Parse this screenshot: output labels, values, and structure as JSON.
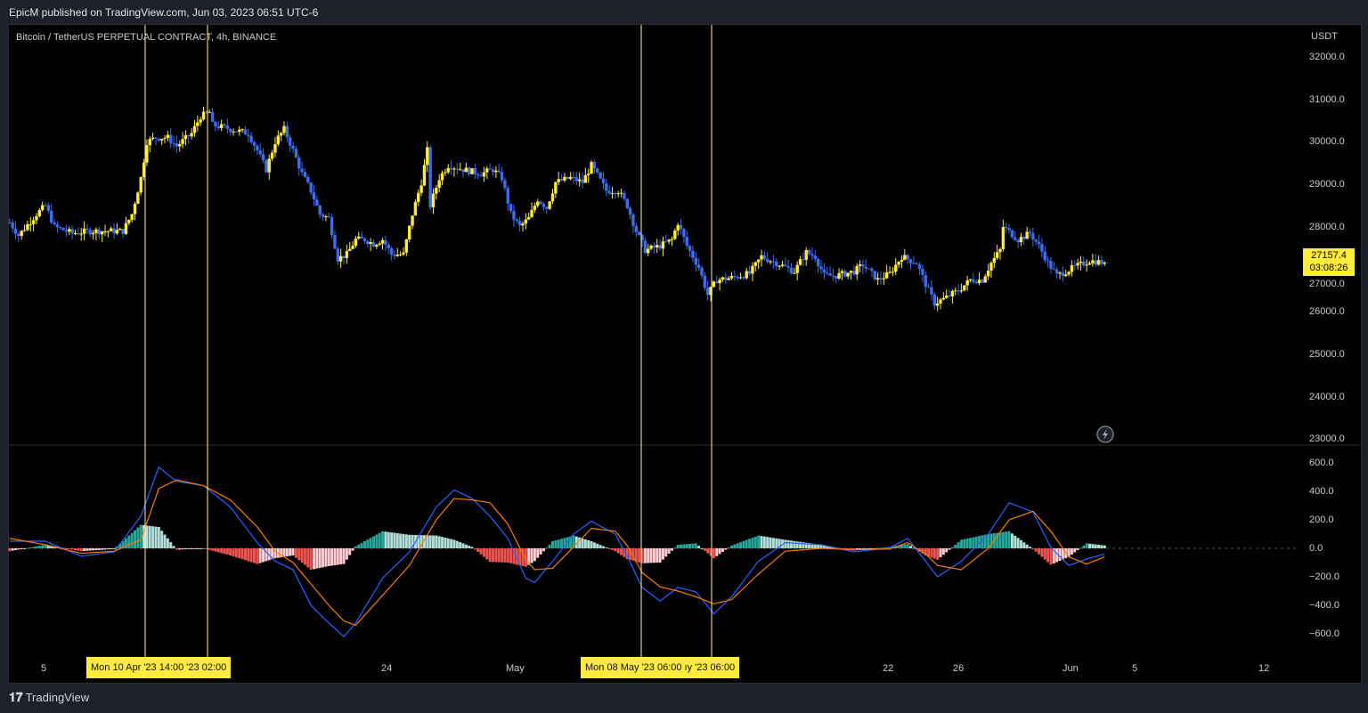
{
  "header": {
    "title": "EpicM published on TradingView.com, Jun 03, 2023 06:51 UTC-6"
  },
  "symbol": {
    "title": "Bitcoin / TetherUS PERPETUAL CONTRACT, 4h, BINANCE",
    "currency": "USDT"
  },
  "price_axis": [
    "32000.0",
    "31000.0",
    "30000.0",
    "29000.0",
    "28000.0",
    "27000.0",
    "26000.0",
    "25000.0",
    "24000.0",
    "23000.0"
  ],
  "macd_axis": [
    "600.0",
    "400.0",
    "200.0",
    "0.0",
    "−200.0",
    "−400.0",
    "−600.0"
  ],
  "last_price": {
    "value": "27157.4",
    "countdown": "03:08:26"
  },
  "time_axis": [
    "5",
    "24",
    "May",
    "22",
    "26",
    "Jun",
    "5",
    "12"
  ],
  "crosshair_labels": [
    "Mon 10 Apr '23   14:00   '23   02:00",
    "Mon 08 May '23   06:00   ıy '23   06:00"
  ],
  "footer": {
    "brand": "TradingView"
  },
  "colors": {
    "up": "#ffeb3b",
    "down": "#3d6cf0",
    "macd": "#2962ff",
    "signal": "#f57c00",
    "hist_pos": "#26a69a",
    "hist_neg": "#ef5350",
    "crosshair": "#fff59d"
  },
  "chart_data": [
    {
      "type": "candlestick",
      "title": "Bitcoin / TetherUS PERPETUAL CONTRACT, 4h, BINANCE",
      "ylabel": "USDT",
      "ylim": [
        23000,
        32000
      ],
      "close_path": [
        [
          "Apr 3 00:00",
          28100
        ],
        [
          "Apr 3 12:00",
          27800
        ],
        [
          "Apr 4 12:00",
          28300
        ],
        [
          "Apr 5 00:00",
          28500
        ],
        [
          "Apr 5 12:00",
          28000
        ],
        [
          "Apr 6 12:00",
          27850
        ],
        [
          "Apr 7 12:00",
          27900
        ],
        [
          "Apr 8 08:00",
          27900
        ],
        [
          "Apr 9 08:00",
          27900
        ],
        [
          "Apr 9 20:00",
          28300
        ],
        [
          "Apr 10 08:00",
          29150
        ],
        [
          "Apr 10 16:00",
          30000
        ],
        [
          "Apr 11 04:00",
          30100
        ],
        [
          "Apr 11 20:00",
          30100
        ],
        [
          "Apr 12 08:00",
          29900
        ],
        [
          "Apr 13 04:00",
          30200
        ],
        [
          "Apr 13 16:00",
          30600
        ],
        [
          "Apr 14 04:00",
          30700
        ],
        [
          "Apr 14 08:00",
          30400
        ],
        [
          "Apr 15 08:00",
          30300
        ],
        [
          "Apr 16 08:00",
          30200
        ],
        [
          "Apr 16 20:00",
          29800
        ],
        [
          "Apr 17 08:00",
          29350
        ],
        [
          "Apr 17 20:00",
          30000
        ],
        [
          "Apr 18 08:00",
          30300
        ],
        [
          "Apr 18 20:00",
          29800
        ],
        [
          "Apr 19 08:00",
          29250
        ],
        [
          "Apr 19 20:00",
          28850
        ],
        [
          "Apr 20 08:00",
          28300
        ],
        [
          "Apr 20 20:00",
          28200
        ],
        [
          "Apr 21 08:00",
          27250
        ],
        [
          "Apr 21 20:00",
          27350
        ],
        [
          "Apr 22 08:00",
          27700
        ],
        [
          "Apr 22 20:00",
          27700
        ],
        [
          "Apr 23 08:00",
          27600
        ],
        [
          "Apr 23 20:00",
          27700
        ],
        [
          "Apr 24 08:00",
          27350
        ],
        [
          "Apr 25 00:00",
          27350
        ],
        [
          "Apr 25 12:00",
          28300
        ],
        [
          "Apr 26 00:00",
          29050
        ],
        [
          "Apr 26 08:00",
          29800
        ],
        [
          "Apr 26 12:00",
          28500
        ],
        [
          "Apr 27 00:00",
          29150
        ],
        [
          "Apr 27 12:00",
          29450
        ],
        [
          "Apr 28 08:00",
          29350
        ],
        [
          "Apr 29 08:00",
          29250
        ],
        [
          "Apr 30 00:00",
          29350
        ],
        [
          "Apr 30 12:00",
          29150
        ],
        [
          "May 1 00:00",
          28300
        ],
        [
          "May 1 12:00",
          28000
        ],
        [
          "May 2 00:00",
          28200
        ],
        [
          "May 2 12:00",
          28650
        ],
        [
          "May 3 00:00",
          28450
        ],
        [
          "May 3 12:00",
          29050
        ],
        [
          "May 4 08:00",
          29150
        ],
        [
          "May 5 00:00",
          29050
        ],
        [
          "May 5 12:00",
          29450
        ],
        [
          "May 6 08:00",
          28850
        ],
        [
          "May 7 00:00",
          28850
        ],
        [
          "May 7 12:00",
          28500
        ],
        [
          "May 8 00:00",
          27900
        ],
        [
          "May 8 12:00",
          27450
        ],
        [
          "May 9 08:00",
          27550
        ],
        [
          "May 10 00:00",
          27700
        ],
        [
          "May 10 08:00",
          28100
        ],
        [
          "May 10 20:00",
          27550
        ],
        [
          "May 11 12:00",
          27050
        ],
        [
          "May 12 00:00",
          26400
        ],
        [
          "May 12 12:00",
          26750
        ],
        [
          "May 13 08:00",
          26800
        ],
        [
          "May 14 08:00",
          26900
        ],
        [
          "May 15 00:00",
          27300
        ],
        [
          "May 15 20:00",
          27150
        ],
        [
          "May 16 20:00",
          26950
        ],
        [
          "May 17 12:00",
          27400
        ],
        [
          "May 18 00:00",
          27300
        ],
        [
          "May 18 12:00",
          26850
        ],
        [
          "May 19 04:00",
          26850
        ],
        [
          "May 20 04:00",
          26950
        ],
        [
          "May 20 16:00",
          27100
        ],
        [
          "May 21 12:00",
          26750
        ],
        [
          "May 22 04:00",
          26900
        ],
        [
          "May 22 20:00",
          27300
        ],
        [
          "May 23 16:00",
          27150
        ],
        [
          "May 24 04:00",
          26650
        ],
        [
          "May 24 16:00",
          26200
        ],
        [
          "May 25 04:00",
          26300
        ],
        [
          "May 26 00:00",
          26500
        ],
        [
          "May 26 16:00",
          26750
        ],
        [
          "May 27 08:00",
          26750
        ],
        [
          "May 27 20:00",
          27150
        ],
        [
          "May 28 08:00",
          27450
        ],
        [
          "May 28 12:00",
          28000
        ],
        [
          "May 29 08:00",
          27700
        ],
        [
          "May 30 00:00",
          27850
        ],
        [
          "May 30 12:00",
          27550
        ],
        [
          "May 31 00:00",
          27150
        ],
        [
          "May 31 12:00",
          26850
        ],
        [
          "Jun 1 00:00",
          26950
        ],
        [
          "Jun 1 12:00",
          27050
        ],
        [
          "Jun 2 08:00",
          27200
        ],
        [
          "Jun 3 04:00",
          27157.4
        ]
      ]
    },
    {
      "type": "line",
      "ylim": [
        -700,
        700
      ],
      "dates": [
        "Apr 3 00:00",
        "Apr 5 00:00",
        "Apr 7 00:00",
        "Apr 8 20:00",
        "Apr 10 08:00",
        "Apr 11 08:00",
        "Apr 12 08:00",
        "Apr 13 20:00",
        "Apr 15 08:00",
        "Apr 16 20:00",
        "Apr 17 20:00",
        "Apr 18 20:00",
        "Apr 19 20:00",
        "Apr 20 20:00",
        "Apr 21 16:00",
        "Apr 22 08:00",
        "Apr 23 20:00",
        "Apr 25 08:00",
        "Apr 26 20:00",
        "Apr 27 20:00",
        "Apr 28 20:00",
        "Apr 29 20:00",
        "Apr 30 20:00",
        "May 1 20:00",
        "May 2 08:00",
        "May 3 08:00",
        "May 4 12:00",
        "May 5 12:00",
        "May 6 20:00",
        "May 7 12:00",
        "May 8 08:00",
        "May 9 08:00",
        "May 10 08:00",
        "May 11 08:00",
        "May 12 08:00",
        "May 13 08:00",
        "May 14 20:00",
        "May 16 08:00",
        "May 18 08:00",
        "May 20 04:00",
        "May 22 04:00",
        "May 23 04:00",
        "May 24 04:00",
        "May 24 20:00",
        "May 26 04:00",
        "May 27 16:00",
        "May 28 20:00",
        "May 30 04:00",
        "May 31 04:00",
        "Jun 1 04:00",
        "Jun 2 04:00",
        "Jun 3 04:00"
      ],
      "series": [
        {
          "values": [
            50,
            50,
            -55,
            -25,
            225,
            570,
            470,
            440,
            290,
            40,
            -90,
            -150,
            -400,
            -525,
            -620,
            -525,
            -210,
            -25,
            290,
            410,
            350,
            225,
            70,
            -210,
            -240,
            -90,
            100,
            190,
            100,
            -55,
            -275,
            -370,
            -275,
            -305,
            -460,
            -340,
            -90,
            40,
            25,
            -25,
            5,
            70,
            -90,
            -200,
            -90,
            100,
            320,
            255,
            5,
            -120,
            -75,
            -40
          ]
        },
        {
          "values": [
            70,
            25,
            -35,
            -20,
            60,
            420,
            480,
            440,
            340,
            150,
            -20,
            -100,
            -250,
            -400,
            -510,
            -540,
            -330,
            -120,
            200,
            350,
            340,
            320,
            170,
            -80,
            -150,
            -140,
            10,
            140,
            120,
            20,
            -170,
            -270,
            -300,
            -340,
            -390,
            -360,
            -180,
            -20,
            0,
            -10,
            -5,
            40,
            -40,
            -120,
            -150,
            0,
            200,
            260,
            120,
            -60,
            -110,
            -60
          ]
        }
      ]
    }
  ]
}
